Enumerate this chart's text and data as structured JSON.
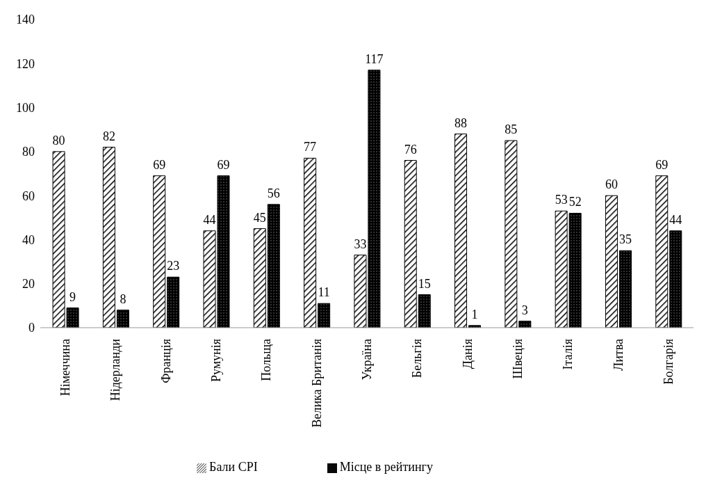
{
  "chart_data": {
    "type": "bar",
    "categories": [
      "Німеччина",
      "Нідерланди",
      "Франція",
      "Румунія",
      "Польща",
      "Велика Британія",
      "Україна",
      "Бельгія",
      "Данія",
      "Швеція",
      "Італія",
      "Литва",
      "Болгарія"
    ],
    "series": [
      {
        "name": "Бали CPI",
        "color": "#000000",
        "values": [
          80,
          82,
          69,
          44,
          45,
          77,
          33,
          76,
          88,
          85,
          53,
          60,
          69
        ]
      },
      {
        "name": "Місце в рейтингу",
        "color": "#000000",
        "values": [
          9,
          8,
          23,
          69,
          56,
          11,
          117,
          15,
          1,
          3,
          52,
          35,
          44
        ]
      }
    ],
    "ylim": [
      0,
      140
    ],
    "yticks": [
      0,
      20,
      40,
      60,
      80,
      100,
      120,
      140
    ],
    "grid": false,
    "legend": "bottom",
    "data_labels": true
  }
}
